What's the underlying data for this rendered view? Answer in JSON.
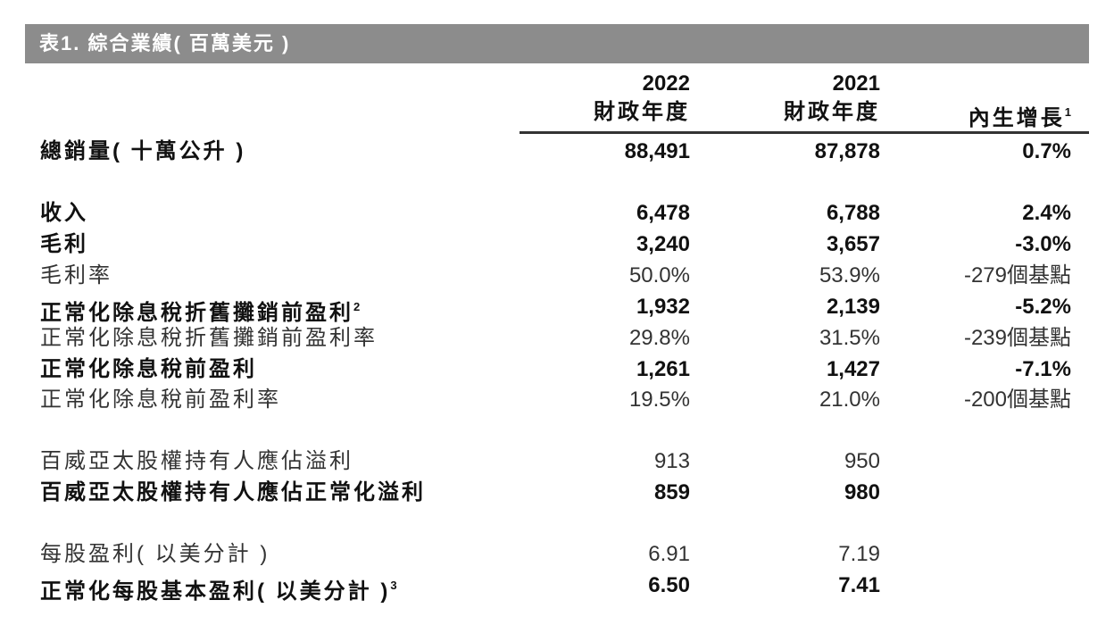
{
  "title": "表1. 綜合業績( 百萬美元 )",
  "headers": [
    {
      "year": "2022",
      "label": "財政年度",
      "note": ""
    },
    {
      "year": "2021",
      "label": "財政年度",
      "note": ""
    },
    {
      "year": "",
      "label": "內生增長",
      "note": "1"
    }
  ],
  "rows": [
    {
      "label": "總銷量( 十萬公升 )",
      "note": "",
      "v2022": "88,491",
      "v2021": "87,878",
      "growth": "0.7%",
      "bold": true
    },
    {
      "label": "收入",
      "note": "",
      "v2022": "6,478",
      "v2021": "6,788",
      "growth": "2.4%",
      "bold": true
    },
    {
      "label": "毛利",
      "note": "",
      "v2022": "3,240",
      "v2021": "3,657",
      "growth": "-3.0%",
      "bold": true
    },
    {
      "label": "毛利率",
      "note": "",
      "v2022": "50.0%",
      "v2021": "53.9%",
      "growth": "-279個基點",
      "bold": false
    },
    {
      "label": "正常化除息稅折舊攤銷前盈利",
      "note": "2",
      "v2022": "1,932",
      "v2021": "2,139",
      "growth": "-5.2%",
      "bold": true
    },
    {
      "label": "正常化除息稅折舊攤銷前盈利率",
      "note": "",
      "v2022": "29.8%",
      "v2021": "31.5%",
      "growth": "-239個基點",
      "bold": false
    },
    {
      "label": "正常化除息稅前盈利",
      "note": "",
      "v2022": "1,261",
      "v2021": "1,427",
      "growth": "-7.1%",
      "bold": true
    },
    {
      "label": "正常化除息稅前盈利率",
      "note": "",
      "v2022": "19.5%",
      "v2021": "21.0%",
      "growth": "-200個基點",
      "bold": false
    },
    {
      "label": "百威亞太股權持有人應佔溢利",
      "note": "",
      "v2022": "913",
      "v2021": "950",
      "growth": "",
      "bold": false
    },
    {
      "label": "百威亞太股權持有人應佔正常化溢利",
      "note": "",
      "v2022": "859",
      "v2021": "980",
      "growth": "",
      "bold": true
    },
    {
      "label": "每股盈利( 以美分計 )",
      "note": "",
      "v2022": "6.91",
      "v2021": "7.19",
      "growth": "",
      "bold": false
    },
    {
      "label": "正常化每股基本盈利( 以美分計 )",
      "note": "3",
      "v2022": "6.50",
      "v2021": "7.41",
      "growth": "",
      "bold": true
    }
  ]
}
